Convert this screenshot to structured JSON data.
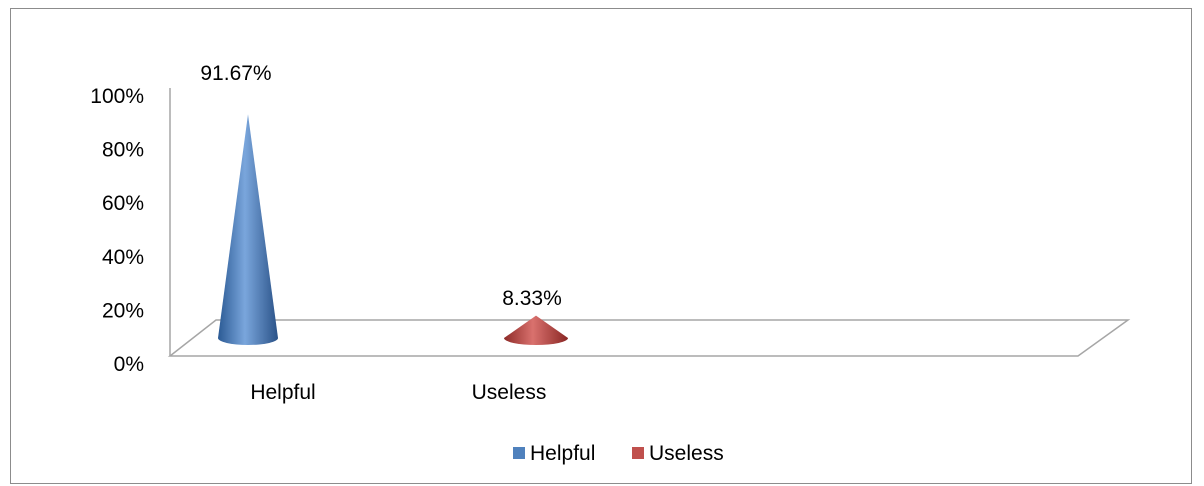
{
  "chart_data": {
    "type": "bar",
    "style": "cone-3d",
    "categories": [
      "Helpful",
      "Useless"
    ],
    "series": [
      {
        "name": "Helpful",
        "values": [
          91.67,
          null
        ],
        "color": "#4f81bd"
      },
      {
        "name": "Useless",
        "values": [
          null,
          8.33
        ],
        "color": "#c0504d"
      }
    ],
    "data_labels": [
      "91.67%",
      "8.33%"
    ],
    "yticks": [
      "0%",
      "20%",
      "40%",
      "60%",
      "80%",
      "100%"
    ],
    "ylim": [
      0,
      100
    ],
    "grid": false,
    "legend_position": "bottom",
    "legend": [
      "Helpful",
      "Useless"
    ],
    "title": "",
    "xlabel": "",
    "ylabel": ""
  }
}
